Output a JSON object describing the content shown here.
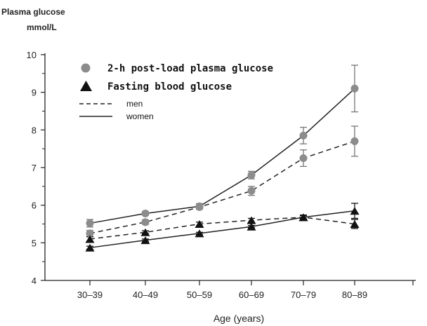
{
  "chart_data": {
    "type": "line",
    "ylabel": [
      "Plasma glucose",
      "mmol/L"
    ],
    "xlabel": "Age (years)",
    "categories": [
      "30–39",
      "40–49",
      "50–59",
      "60–69",
      "70–79",
      "80–89"
    ],
    "ylim": [
      4,
      10
    ],
    "yticks": [
      "4",
      "5",
      "6",
      "7",
      "8",
      "9",
      "10"
    ],
    "legend": {
      "position": "top-left",
      "markers": [
        {
          "label": "2-h post-load plasma glucose",
          "marker": "circle"
        },
        {
          "label": "Fasting blood glucose",
          "marker": "triangle"
        }
      ],
      "lines": [
        {
          "label": "men",
          "style": "dashed"
        },
        {
          "label": "women",
          "style": "solid"
        }
      ]
    },
    "series": [
      {
        "measure": "2-h post-load plasma glucose",
        "sex": "women",
        "marker": "circle",
        "style": "solid",
        "values": [
          5.52,
          5.78,
          5.97,
          6.8,
          7.85,
          9.1
        ],
        "errors": [
          0.1,
          0.05,
          0.07,
          0.1,
          0.22,
          0.62
        ]
      },
      {
        "measure": "2-h post-load plasma glucose",
        "sex": "men",
        "marker": "circle",
        "style": "dashed",
        "values": [
          5.25,
          5.55,
          5.95,
          6.38,
          7.25,
          7.7
        ],
        "errors": [
          0.08,
          0.06,
          0.06,
          0.12,
          0.22,
          0.4
        ]
      },
      {
        "measure": "Fasting blood glucose",
        "sex": "women",
        "marker": "triangle",
        "style": "solid",
        "values": [
          4.87,
          5.07,
          5.25,
          5.43,
          5.68,
          5.85
        ],
        "errors": [
          0.04,
          0.03,
          0.03,
          0.03,
          0.04,
          0.2
        ]
      },
      {
        "measure": "Fasting blood glucose",
        "sex": "men",
        "marker": "triangle",
        "style": "dashed",
        "values": [
          5.1,
          5.28,
          5.5,
          5.6,
          5.68,
          5.5
        ],
        "errors": [
          0.06,
          0.04,
          0.05,
          0.05,
          0.06,
          0.12
        ]
      }
    ],
    "colors": {
      "circle": "#8c8c8c",
      "triangle": "#111111",
      "line": "#222222"
    },
    "grid": false
  }
}
